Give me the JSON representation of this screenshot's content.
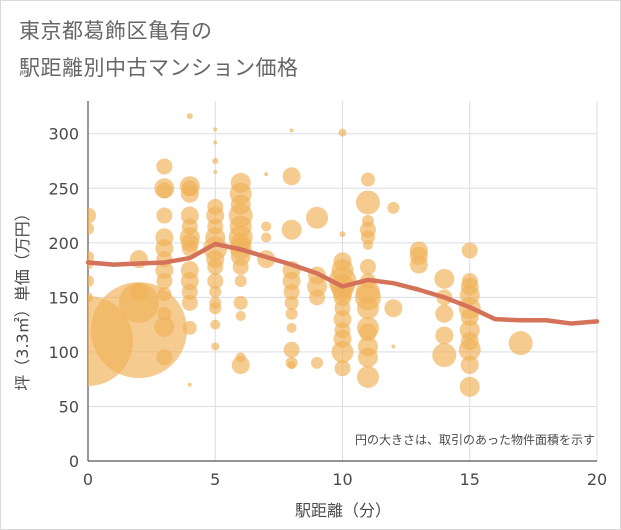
{
  "title": {
    "line1": "東京都葛飾区亀有の",
    "line2": "駅距離別中古マンション価格"
  },
  "chart_data": {
    "type": "scatter",
    "xlabel": "駅距離（分）",
    "ylabel": "坪（3.3㎡）単価（万円）",
    "xlim": [
      0,
      20
    ],
    "ylim": [
      0,
      330
    ],
    "x_ticks": [
      0,
      5,
      10,
      15,
      20
    ],
    "y_ticks": [
      0,
      50,
      100,
      150,
      200,
      250,
      300
    ],
    "grid": true,
    "note": "円の大きさは、取引のあった物件面積を示す",
    "colors": {
      "bubble": "#f0b35a",
      "line": "#d4735a",
      "grid": "#d9dde6"
    },
    "bubbles": [
      [
        0,
        225,
        8
      ],
      [
        0,
        213,
        6
      ],
      [
        0,
        187,
        6
      ],
      [
        0,
        180,
        5
      ],
      [
        0,
        165,
        6
      ],
      [
        0,
        150,
        5
      ],
      [
        0,
        110,
        45
      ],
      [
        2,
        185,
        9
      ],
      [
        2,
        155,
        9
      ],
      [
        2,
        145,
        20
      ],
      [
        2,
        120,
        48
      ],
      [
        3,
        270,
        8
      ],
      [
        3,
        250,
        10
      ],
      [
        3,
        248,
        8
      ],
      [
        3,
        225,
        8
      ],
      [
        3,
        205,
        9
      ],
      [
        3,
        195,
        9
      ],
      [
        3,
        185,
        8
      ],
      [
        3,
        175,
        9
      ],
      [
        3,
        165,
        8
      ],
      [
        3,
        153,
        7
      ],
      [
        3,
        135,
        7
      ],
      [
        3,
        123,
        10
      ],
      [
        3,
        95,
        8
      ],
      [
        4,
        316,
        3
      ],
      [
        4,
        252,
        10
      ],
      [
        4,
        250,
        8
      ],
      [
        4,
        245,
        9
      ],
      [
        4,
        225,
        9
      ],
      [
        4,
        215,
        8
      ],
      [
        4,
        205,
        10
      ],
      [
        4,
        200,
        9
      ],
      [
        4,
        195,
        8
      ],
      [
        4,
        175,
        9
      ],
      [
        4,
        165,
        9
      ],
      [
        4,
        155,
        8
      ],
      [
        4,
        145,
        8
      ],
      [
        4,
        122,
        7
      ],
      [
        4,
        70,
        2
      ],
      [
        5,
        304,
        2
      ],
      [
        5,
        292,
        2
      ],
      [
        5,
        275,
        3
      ],
      [
        5,
        265,
        2
      ],
      [
        5,
        233,
        8
      ],
      [
        5,
        225,
        9
      ],
      [
        5,
        215,
        8
      ],
      [
        5,
        205,
        10
      ],
      [
        5,
        195,
        12
      ],
      [
        5,
        185,
        9
      ],
      [
        5,
        178,
        8
      ],
      [
        5,
        165,
        8
      ],
      [
        5,
        155,
        6
      ],
      [
        5,
        145,
        6
      ],
      [
        5,
        140,
        6
      ],
      [
        5,
        125,
        5
      ],
      [
        5,
        105,
        4
      ],
      [
        6,
        255,
        10
      ],
      [
        6,
        245,
        11
      ],
      [
        6,
        235,
        10
      ],
      [
        6,
        225,
        12
      ],
      [
        6,
        215,
        11
      ],
      [
        6,
        205,
        12
      ],
      [
        6,
        200,
        10
      ],
      [
        6,
        195,
        11
      ],
      [
        6,
        188,
        10
      ],
      [
        6,
        178,
        8
      ],
      [
        6,
        165,
        6
      ],
      [
        6,
        145,
        7
      ],
      [
        6,
        133,
        5
      ],
      [
        6,
        95,
        5
      ],
      [
        6,
        88,
        9
      ],
      [
        7,
        263,
        2
      ],
      [
        7,
        215,
        5
      ],
      [
        7,
        205,
        5
      ],
      [
        7,
        185,
        9
      ],
      [
        8,
        303,
        2
      ],
      [
        8,
        261,
        9
      ],
      [
        8,
        212,
        10
      ],
      [
        8,
        175,
        9
      ],
      [
        8,
        165,
        9
      ],
      [
        8,
        155,
        8
      ],
      [
        8,
        145,
        7
      ],
      [
        8,
        135,
        6
      ],
      [
        8,
        122,
        5
      ],
      [
        8,
        102,
        8
      ],
      [
        8,
        90,
        6
      ],
      [
        8,
        88,
        4
      ],
      [
        9,
        223,
        11
      ],
      [
        9,
        170,
        9
      ],
      [
        9,
        160,
        10
      ],
      [
        9,
        150,
        8
      ],
      [
        9,
        90,
        6
      ],
      [
        10,
        301,
        4
      ],
      [
        10,
        208,
        3
      ],
      [
        10,
        183,
        9
      ],
      [
        10,
        175,
        11
      ],
      [
        10,
        165,
        14
      ],
      [
        10,
        160,
        12
      ],
      [
        10,
        155,
        10
      ],
      [
        10,
        150,
        9
      ],
      [
        10,
        140,
        8
      ],
      [
        10,
        130,
        9
      ],
      [
        10,
        120,
        8
      ],
      [
        10,
        112,
        9
      ],
      [
        10,
        100,
        11
      ],
      [
        10,
        85,
        8
      ],
      [
        11,
        258,
        7
      ],
      [
        11,
        237,
        12
      ],
      [
        11,
        220,
        6
      ],
      [
        11,
        212,
        8
      ],
      [
        11,
        205,
        7
      ],
      [
        11,
        198,
        5
      ],
      [
        11,
        178,
        8
      ],
      [
        11,
        165,
        8
      ],
      [
        11,
        155,
        12
      ],
      [
        11,
        150,
        13
      ],
      [
        11,
        140,
        11
      ],
      [
        11,
        122,
        11
      ],
      [
        11,
        118,
        9
      ],
      [
        11,
        105,
        10
      ],
      [
        11,
        95,
        10
      ],
      [
        11,
        77,
        11
      ],
      [
        12,
        232,
        6
      ],
      [
        12,
        140,
        9
      ],
      [
        12,
        105,
        2
      ],
      [
        13,
        193,
        9
      ],
      [
        13,
        188,
        9
      ],
      [
        13,
        180,
        9
      ],
      [
        14,
        167,
        10
      ],
      [
        14,
        150,
        8
      ],
      [
        14,
        135,
        9
      ],
      [
        14,
        115,
        9
      ],
      [
        14,
        97,
        12
      ],
      [
        15,
        193,
        8
      ],
      [
        15,
        165,
        8
      ],
      [
        15,
        160,
        9
      ],
      [
        15,
        152,
        10
      ],
      [
        15,
        140,
        11
      ],
      [
        15,
        132,
        9
      ],
      [
        15,
        120,
        10
      ],
      [
        15,
        110,
        9
      ],
      [
        15,
        102,
        11
      ],
      [
        15,
        88,
        9
      ],
      [
        15,
        68,
        10
      ],
      [
        17,
        108,
        12
      ]
    ],
    "trend_line": {
      "x": [
        0,
        1,
        2,
        3,
        4,
        5,
        6,
        7,
        8,
        9,
        10,
        11,
        12,
        13,
        14,
        15,
        16,
        17,
        18,
        19,
        20
      ],
      "y": [
        182,
        180,
        181,
        182,
        186,
        199,
        194,
        187,
        180,
        172,
        160,
        166,
        163,
        157,
        150,
        141,
        130,
        129,
        129,
        126,
        128
      ]
    }
  }
}
